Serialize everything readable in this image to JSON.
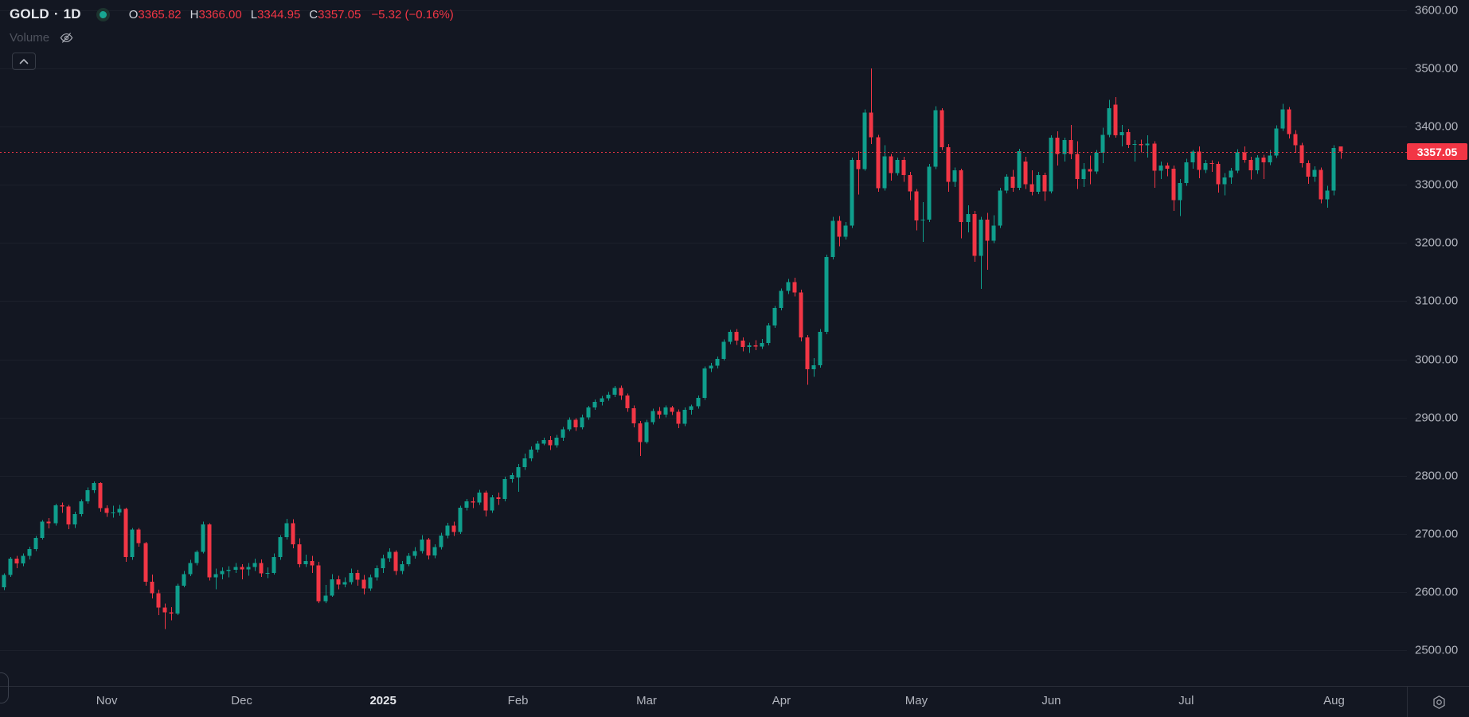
{
  "legend": {
    "symbol": "GOLD",
    "separator": "·",
    "interval": "1D",
    "ohlc": {
      "open_label": "O",
      "open": "3365.82",
      "high_label": "H",
      "high": "3366.00",
      "low_label": "L",
      "low": "3344.95",
      "close_label": "C",
      "close": "3357.05",
      "change": "−5.32 (−0.16%)"
    },
    "indicator": {
      "name": "Volume",
      "visibility_icon": "eye-off-icon"
    }
  },
  "toolbar": {
    "collapse_icon": "chevron-up-icon"
  },
  "price_axis": {
    "ticks": [
      "3600.00",
      "3500.00",
      "3400.00",
      "3300.00",
      "3200.00",
      "3100.00",
      "3000.00",
      "2900.00",
      "2800.00",
      "2700.00",
      "2600.00",
      "2500.00"
    ],
    "last_price_label": "3357.05"
  },
  "time_axis": {
    "labels": [
      {
        "text": "Nov",
        "bar": 16
      },
      {
        "text": "Dec",
        "bar": 37
      },
      {
        "text": "2025",
        "bar": 59,
        "strong": true
      },
      {
        "text": "Feb",
        "bar": 80
      },
      {
        "text": "Mar",
        "bar": 100
      },
      {
        "text": "Apr",
        "bar": 121
      },
      {
        "text": "May",
        "bar": 142
      },
      {
        "text": "Jun",
        "bar": 163
      },
      {
        "text": "Jul",
        "bar": 184
      },
      {
        "text": "Aug",
        "bar": 207
      }
    ],
    "settings_icon": "gear-icon"
  },
  "colors": {
    "background": "#131722",
    "up": "#0f9e8c",
    "down": "#f23645",
    "axis_text": "#b2b5be",
    "grid": "#1c202b",
    "border": "#2a2e39",
    "last_price": "#f23645",
    "badge_text": "#ffffff"
  },
  "chart_data": {
    "type": "candlestick",
    "symbol": "GOLD",
    "interval": "1D",
    "title": "GOLD · 1D",
    "last_price": 3357.05,
    "ohlc_current": {
      "open": 3365.82,
      "high": 3366.0,
      "low": 3344.95,
      "close": 3357.05,
      "change": -5.32,
      "change_pct": -0.16
    },
    "y_axis": {
      "min": 2500,
      "max": 3600,
      "tick_step": 100,
      "grid": "faint"
    },
    "x_axis_months": [
      "Nov",
      "Dec",
      "2025",
      "Feb",
      "Mar",
      "Apr",
      "May",
      "Jun",
      "Jul",
      "Aug"
    ],
    "legend_position": "top-left",
    "candles": [
      [
        2608,
        2632,
        2603,
        2629
      ],
      [
        2629,
        2660,
        2626,
        2657
      ],
      [
        2657,
        2662,
        2641,
        2649
      ],
      [
        2649,
        2666,
        2644,
        2662
      ],
      [
        2662,
        2678,
        2656,
        2674
      ],
      [
        2674,
        2696,
        2670,
        2693
      ],
      [
        2693,
        2724,
        2690,
        2721
      ],
      [
        2721,
        2727,
        2709,
        2718
      ],
      [
        2718,
        2752,
        2714,
        2749
      ],
      [
        2749,
        2754,
        2736,
        2747
      ],
      [
        2747,
        2750,
        2708,
        2716
      ],
      [
        2716,
        2738,
        2710,
        2734
      ],
      [
        2734,
        2759,
        2730,
        2756
      ],
      [
        2756,
        2780,
        2752,
        2775
      ],
      [
        2775,
        2790,
        2770,
        2787
      ],
      [
        2787,
        2789,
        2738,
        2744
      ],
      [
        2744,
        2749,
        2729,
        2736
      ],
      [
        2736,
        2748,
        2728,
        2737
      ],
      [
        2737,
        2750,
        2731,
        2743
      ],
      [
        2743,
        2745,
        2652,
        2660
      ],
      [
        2660,
        2710,
        2655,
        2707
      ],
      [
        2707,
        2710,
        2678,
        2684
      ],
      [
        2684,
        2686,
        2611,
        2618
      ],
      [
        2618,
        2630,
        2589,
        2598
      ],
      [
        2598,
        2604,
        2560,
        2573
      ],
      [
        2573,
        2580,
        2536,
        2565
      ],
      [
        2565,
        2574,
        2551,
        2563
      ],
      [
        2563,
        2614,
        2560,
        2611
      ],
      [
        2611,
        2636,
        2608,
        2631
      ],
      [
        2631,
        2655,
        2627,
        2650
      ],
      [
        2650,
        2672,
        2646,
        2669
      ],
      [
        2669,
        2721,
        2666,
        2716
      ],
      [
        2716,
        2718,
        2620,
        2625
      ],
      [
        2625,
        2640,
        2605,
        2631
      ],
      [
        2631,
        2642,
        2622,
        2636
      ],
      [
        2636,
        2644,
        2625,
        2638
      ],
      [
        2638,
        2650,
        2633,
        2643
      ],
      [
        2643,
        2648,
        2622,
        2639
      ],
      [
        2639,
        2650,
        2628,
        2643
      ],
      [
        2643,
        2657,
        2636,
        2650
      ],
      [
        2650,
        2656,
        2626,
        2632
      ],
      [
        2632,
        2642,
        2624,
        2633
      ],
      [
        2633,
        2666,
        2630,
        2660
      ],
      [
        2660,
        2698,
        2655,
        2694
      ],
      [
        2694,
        2726,
        2690,
        2718
      ],
      [
        2718,
        2725,
        2675,
        2682
      ],
      [
        2682,
        2692,
        2642,
        2648
      ],
      [
        2648,
        2664,
        2643,
        2653
      ],
      [
        2653,
        2662,
        2633,
        2646
      ],
      [
        2646,
        2652,
        2581,
        2584
      ],
      [
        2584,
        2612,
        2581,
        2594
      ],
      [
        2594,
        2631,
        2592,
        2622
      ],
      [
        2622,
        2628,
        2605,
        2613
      ],
      [
        2613,
        2625,
        2608,
        2617
      ],
      [
        2617,
        2640,
        2613,
        2633
      ],
      [
        2633,
        2638,
        2611,
        2621
      ],
      [
        2621,
        2629,
        2596,
        2606
      ],
      [
        2606,
        2630,
        2602,
        2625
      ],
      [
        2625,
        2646,
        2620,
        2641
      ],
      [
        2641,
        2664,
        2633,
        2658
      ],
      [
        2658,
        2675,
        2652,
        2669
      ],
      [
        2669,
        2672,
        2629,
        2636
      ],
      [
        2636,
        2653,
        2631,
        2648
      ],
      [
        2648,
        2667,
        2644,
        2662
      ],
      [
        2662,
        2677,
        2657,
        2670
      ],
      [
        2670,
        2698,
        2666,
        2690
      ],
      [
        2690,
        2693,
        2656,
        2663
      ],
      [
        2663,
        2682,
        2658,
        2677
      ],
      [
        2677,
        2702,
        2673,
        2697
      ],
      [
        2697,
        2719,
        2692,
        2714
      ],
      [
        2714,
        2721,
        2696,
        2703
      ],
      [
        2703,
        2748,
        2700,
        2745
      ],
      [
        2745,
        2760,
        2740,
        2756
      ],
      [
        2756,
        2763,
        2744,
        2754
      ],
      [
        2754,
        2776,
        2750,
        2771
      ],
      [
        2771,
        2774,
        2730,
        2740
      ],
      [
        2740,
        2767,
        2736,
        2763
      ],
      [
        2763,
        2771,
        2750,
        2760
      ],
      [
        2760,
        2798,
        2756,
        2794
      ],
      [
        2794,
        2805,
        2788,
        2801
      ],
      [
        2797,
        2820,
        2772,
        2815
      ],
      [
        2815,
        2838,
        2810,
        2830
      ],
      [
        2830,
        2850,
        2825,
        2845
      ],
      [
        2845,
        2860,
        2840,
        2855
      ],
      [
        2855,
        2865,
        2852,
        2861
      ],
      [
        2861,
        2868,
        2844,
        2852
      ],
      [
        2852,
        2870,
        2848,
        2865
      ],
      [
        2865,
        2884,
        2860,
        2880
      ],
      [
        2880,
        2900,
        2876,
        2896
      ],
      [
        2896,
        2899,
        2877,
        2883
      ],
      [
        2883,
        2905,
        2880,
        2900
      ],
      [
        2900,
        2920,
        2896,
        2917
      ],
      [
        2917,
        2931,
        2913,
        2927
      ],
      [
        2927,
        2937,
        2921,
        2933
      ],
      [
        2933,
        2944,
        2929,
        2939
      ],
      [
        2939,
        2954,
        2935,
        2951
      ],
      [
        2951,
        2955,
        2930,
        2938
      ],
      [
        2938,
        2941,
        2910,
        2916
      ],
      [
        2916,
        2921,
        2883,
        2890
      ],
      [
        2890,
        2894,
        2834,
        2858
      ],
      [
        2858,
        2896,
        2855,
        2892
      ],
      [
        2892,
        2915,
        2888,
        2911
      ],
      [
        2911,
        2918,
        2898,
        2905
      ],
      [
        2905,
        2921,
        2900,
        2917
      ],
      [
        2917,
        2920,
        2904,
        2910
      ],
      [
        2910,
        2914,
        2882,
        2889
      ],
      [
        2889,
        2917,
        2885,
        2913
      ],
      [
        2913,
        2922,
        2905,
        2919
      ],
      [
        2919,
        2938,
        2915,
        2934
      ],
      [
        2934,
        2988,
        2930,
        2984
      ],
      [
        2984,
        2994,
        2978,
        2989
      ],
      [
        2989,
        3005,
        2984,
        3001
      ],
      [
        3001,
        3034,
        2998,
        3030
      ],
      [
        3030,
        3051,
        3026,
        3047
      ],
      [
        3047,
        3052,
        3025,
        3032
      ],
      [
        3032,
        3038,
        3014,
        3021
      ],
      [
        3021,
        3029,
        3011,
        3024
      ],
      [
        3024,
        3033,
        3016,
        3022
      ],
      [
        3022,
        3035,
        3018,
        3028
      ],
      [
        3028,
        3062,
        3024,
        3058
      ],
      [
        3058,
        3092,
        3054,
        3088
      ],
      [
        3088,
        3122,
        3084,
        3118
      ],
      [
        3118,
        3138,
        3112,
        3133
      ],
      [
        3133,
        3140,
        3108,
        3115
      ],
      [
        3115,
        3120,
        3031,
        3038
      ],
      [
        3038,
        3042,
        2956,
        2983
      ],
      [
        2983,
        3002,
        2970,
        2990
      ],
      [
        2990,
        3052,
        2986,
        3047
      ],
      [
        3047,
        3180,
        3043,
        3176
      ],
      [
        3176,
        3245,
        3172,
        3238
      ],
      [
        3238,
        3246,
        3194,
        3211
      ],
      [
        3211,
        3236,
        3206,
        3230
      ],
      [
        3230,
        3347,
        3226,
        3343
      ],
      [
        3343,
        3358,
        3283,
        3327
      ],
      [
        3327,
        3430,
        3324,
        3424
      ],
      [
        3424,
        3500,
        3370,
        3382
      ],
      [
        3382,
        3386,
        3288,
        3294
      ],
      [
        3294,
        3368,
        3290,
        3349
      ],
      [
        3349,
        3353,
        3307,
        3320
      ],
      [
        3320,
        3347,
        3316,
        3343
      ],
      [
        3343,
        3348,
        3305,
        3317
      ],
      [
        3317,
        3322,
        3274,
        3289
      ],
      [
        3289,
        3293,
        3222,
        3239
      ],
      [
        3239,
        3270,
        3202,
        3240
      ],
      [
        3240,
        3336,
        3236,
        3331
      ],
      [
        3331,
        3435,
        3327,
        3428
      ],
      [
        3428,
        3432,
        3360,
        3365
      ],
      [
        3365,
        3370,
        3288,
        3305
      ],
      [
        3305,
        3330,
        3296,
        3325
      ],
      [
        3325,
        3328,
        3208,
        3236
      ],
      [
        3236,
        3265,
        3218,
        3250
      ],
      [
        3250,
        3255,
        3168,
        3178
      ],
      [
        3178,
        3245,
        3121,
        3240
      ],
      [
        3240,
        3252,
        3154,
        3204
      ],
      [
        3204,
        3248,
        3200,
        3230
      ],
      [
        3230,
        3295,
        3226,
        3290
      ],
      [
        3290,
        3318,
        3285,
        3314
      ],
      [
        3314,
        3326,
        3288,
        3295
      ],
      [
        3295,
        3362,
        3291,
        3358
      ],
      [
        3340,
        3348,
        3293,
        3301
      ],
      [
        3301,
        3325,
        3282,
        3288
      ],
      [
        3288,
        3322,
        3284,
        3317
      ],
      [
        3317,
        3321,
        3272,
        3289
      ],
      [
        3289,
        3385,
        3285,
        3381
      ],
      [
        3381,
        3392,
        3333,
        3353
      ],
      [
        3353,
        3381,
        3340,
        3377
      ],
      [
        3377,
        3403,
        3344,
        3353
      ],
      [
        3353,
        3375,
        3293,
        3310
      ],
      [
        3310,
        3337,
        3296,
        3327
      ],
      [
        3327,
        3350,
        3301,
        3323
      ],
      [
        3323,
        3360,
        3319,
        3355
      ],
      [
        3355,
        3398,
        3337,
        3386
      ],
      [
        3386,
        3446,
        3382,
        3432
      ],
      [
        3438,
        3451,
        3381,
        3385
      ],
      [
        3385,
        3403,
        3366,
        3391
      ],
      [
        3391,
        3396,
        3363,
        3369
      ],
      [
        3369,
        3377,
        3340,
        3370
      ],
      [
        3370,
        3378,
        3356,
        3368
      ],
      [
        3368,
        3385,
        3347,
        3371
      ],
      [
        3371,
        3375,
        3295,
        3324
      ],
      [
        3324,
        3340,
        3310,
        3333
      ],
      [
        3333,
        3338,
        3315,
        3328
      ],
      [
        3328,
        3333,
        3255,
        3274
      ],
      [
        3274,
        3310,
        3246,
        3303
      ],
      [
        3303,
        3345,
        3298,
        3339
      ],
      [
        3339,
        3360,
        3328,
        3357
      ],
      [
        3357,
        3366,
        3311,
        3326
      ],
      [
        3326,
        3343,
        3320,
        3337
      ],
      [
        3337,
        3342,
        3322,
        3336
      ],
      [
        3336,
        3340,
        3287,
        3301
      ],
      [
        3301,
        3320,
        3282,
        3313
      ],
      [
        3313,
        3329,
        3302,
        3324
      ],
      [
        3324,
        3361,
        3320,
        3356
      ],
      [
        3356,
        3366,
        3338,
        3343
      ],
      [
        3343,
        3348,
        3309,
        3325
      ],
      [
        3325,
        3351,
        3319,
        3347
      ],
      [
        3347,
        3352,
        3310,
        3339
      ],
      [
        3339,
        3360,
        3334,
        3350
      ],
      [
        3350,
        3402,
        3346,
        3397
      ],
      [
        3397,
        3439,
        3393,
        3430
      ],
      [
        3430,
        3434,
        3380,
        3387
      ],
      [
        3387,
        3394,
        3355,
        3368
      ],
      [
        3368,
        3372,
        3330,
        3337
      ],
      [
        3337,
        3342,
        3302,
        3314
      ],
      [
        3314,
        3332,
        3305,
        3326
      ],
      [
        3326,
        3330,
        3268,
        3275
      ],
      [
        3275,
        3298,
        3261,
        3290
      ],
      [
        3290,
        3368,
        3282,
        3363
      ],
      [
        3365.82,
        3366.0,
        3344.95,
        3357.05
      ]
    ]
  }
}
